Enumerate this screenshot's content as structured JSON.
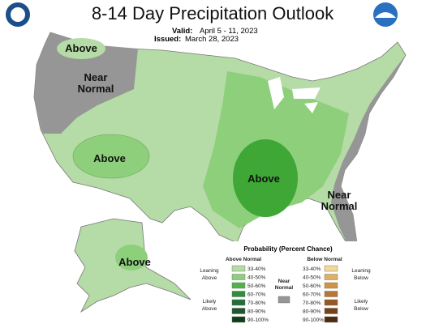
{
  "header": {
    "title": "8-14 Day Precipitation Outlook",
    "valid_label": "Valid:",
    "valid": "April 5 - 11, 2023",
    "issued_label": "Issued:",
    "issued": "March 28, 2023"
  },
  "map_labels": [
    {
      "lines": [
        "Above"
      ]
    },
    {
      "lines": [
        "Near",
        "Normal"
      ]
    },
    {
      "lines": [
        "Above"
      ]
    },
    {
      "lines": [
        "Above"
      ]
    },
    {
      "lines": [
        "Near",
        "Normal"
      ]
    },
    {
      "lines": [
        "Above"
      ]
    }
  ],
  "legend": {
    "title": "Probability (Percent Chance)",
    "above_header": "Above Normal",
    "below_header": "Below Normal",
    "near_normal": [
      "Near",
      "Normal"
    ],
    "leaning_above": [
      "Leaning",
      "Above"
    ],
    "likely_above": [
      "Likely",
      "Above"
    ],
    "leaning_below": [
      "Leaning",
      "Below"
    ],
    "likely_below": [
      "Likely",
      "Below"
    ],
    "above_bins": [
      "33-40%",
      "40-50%",
      "50-60%",
      "60-70%",
      "70-80%",
      "80-90%",
      "90-100%"
    ],
    "below_bins": [
      "33-40%",
      "40-50%",
      "50-60%",
      "60-70%",
      "70-80%",
      "80-90%",
      "90-100%"
    ]
  }
}
